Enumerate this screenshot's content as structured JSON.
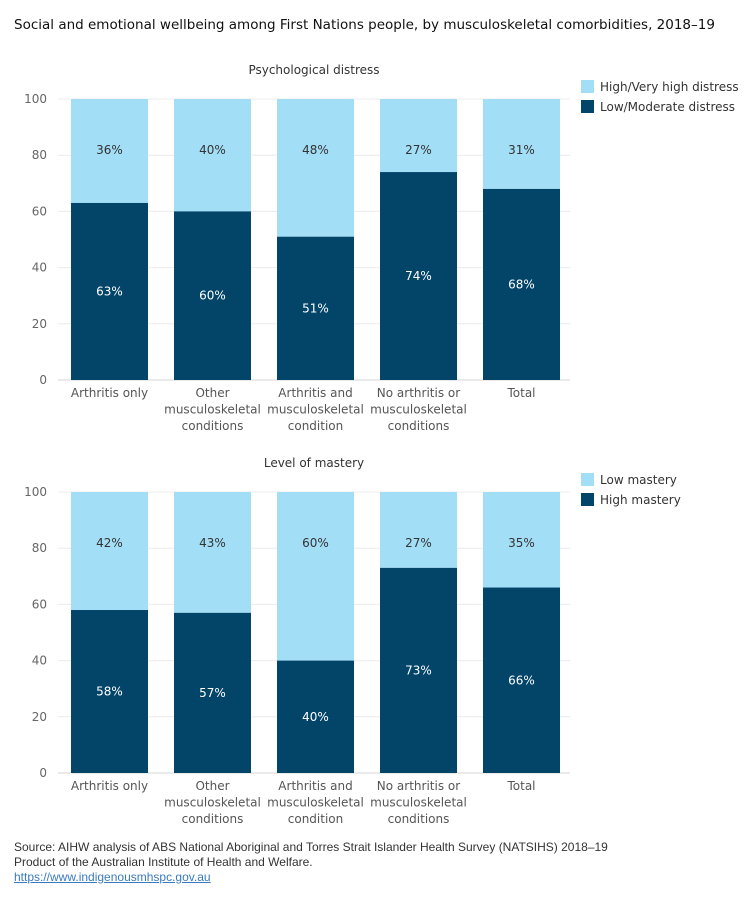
{
  "page": {
    "title": "Social and emotional wellbeing among First Nations people, by musculoskeletal comorbidities, 2018–19"
  },
  "colors": {
    "light": "#a3def7",
    "dark": "#034469"
  },
  "chart_data": [
    {
      "type": "bar",
      "stacked": true,
      "title": "Psychological distress",
      "categories": [
        [
          "Arthritis only"
        ],
        [
          "Other",
          "musculoskeletal",
          "conditions"
        ],
        [
          "Arthritis and",
          "musculoskeletal",
          "condition"
        ],
        [
          "No arthritis or",
          "musculoskeletal",
          "conditions"
        ],
        [
          "Total"
        ]
      ],
      "series": [
        {
          "name": "Low/Moderate distress",
          "color": "#034469",
          "values": [
            63,
            60,
            51,
            74,
            68
          ],
          "labels": [
            "63%",
            "60%",
            "51%",
            "74%",
            "68%"
          ]
        },
        {
          "name": "High/Very high distress",
          "color": "#a3def7",
          "values": [
            36,
            40,
            48,
            27,
            31
          ],
          "labels": [
            "36%",
            "40%",
            "48%",
            "27%",
            "31%"
          ]
        }
      ],
      "legend": [
        "High/Very high distress",
        "Low/Moderate distress"
      ],
      "yticks": [
        "0",
        "20",
        "40",
        "60",
        "80",
        "100"
      ],
      "ylim": [
        0,
        100
      ],
      "legend_position": "right",
      "grid": true
    },
    {
      "type": "bar",
      "stacked": true,
      "title": "Level of mastery",
      "categories": [
        [
          "Arthritis only"
        ],
        [
          "Other",
          "musculoskeletal",
          "conditions"
        ],
        [
          "Arthritis and",
          "musculoskeletal",
          "condition"
        ],
        [
          "No arthritis or",
          "musculoskeletal",
          "conditions"
        ],
        [
          "Total"
        ]
      ],
      "series": [
        {
          "name": "High mastery",
          "color": "#034469",
          "values": [
            58,
            57,
            40,
            73,
            66
          ],
          "labels": [
            "58%",
            "57%",
            "40%",
            "73%",
            "66%"
          ]
        },
        {
          "name": "Low mastery",
          "color": "#a3def7",
          "values": [
            42,
            43,
            60,
            27,
            35
          ],
          "labels": [
            "42%",
            "43%",
            "60%",
            "27%",
            "35%"
          ]
        }
      ],
      "legend": [
        "Low mastery",
        "High mastery"
      ],
      "yticks": [
        "0",
        "20",
        "40",
        "60",
        "80",
        "100"
      ],
      "ylim": [
        0,
        100
      ],
      "legend_position": "right",
      "grid": true
    }
  ],
  "footer": {
    "source": "Source: AIHW analysis of ABS National Aboriginal and Torres Strait Islander Health Survey (NATSIHS) 2018–19",
    "product": "Product of the Australian Institute of Health and Welfare.",
    "link": "https://www.indigenousmhspc.gov.au"
  }
}
